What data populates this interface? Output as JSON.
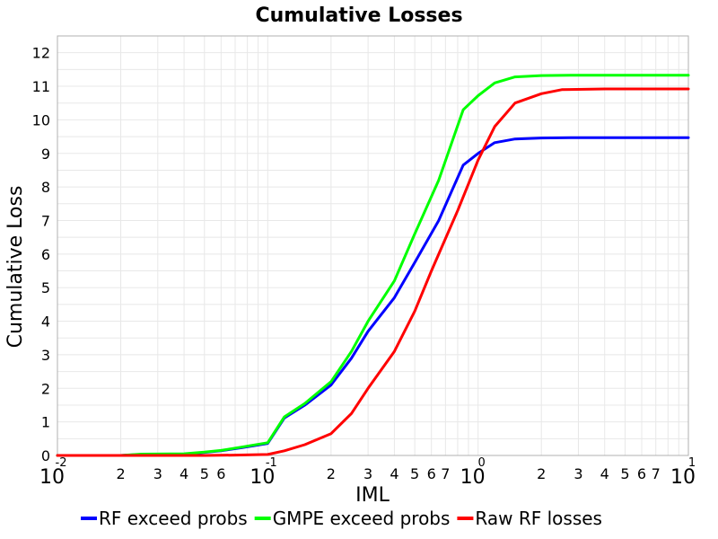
{
  "chart_data": {
    "type": "line",
    "title": "Cumulative Losses",
    "xlabel": "IML",
    "ylabel": "Cumulative Loss",
    "xscale": "log",
    "xlim": [
      0.01,
      10
    ],
    "ylim": [
      0,
      12.5
    ],
    "yticks": [
      "0",
      "1",
      "2",
      "3",
      "4",
      "5",
      "6",
      "7",
      "8",
      "9",
      "10",
      "11",
      "12"
    ],
    "xmajor_ticks": [
      {
        "value": 0.01,
        "base": "10",
        "exp": "-2"
      },
      {
        "value": 0.1,
        "base": "10",
        "exp": "-1"
      },
      {
        "value": 1,
        "base": "10",
        "exp": "0"
      },
      {
        "value": 10,
        "base": "10",
        "exp": "1"
      }
    ],
    "xminor_labels": [
      {
        "value": 0.02,
        "label": "2"
      },
      {
        "value": 0.03,
        "label": "3"
      },
      {
        "value": 0.04,
        "label": "4"
      },
      {
        "value": 0.05,
        "label": "5"
      },
      {
        "value": 0.06,
        "label": "6"
      },
      {
        "value": 0.2,
        "label": "2"
      },
      {
        "value": 0.3,
        "label": "3"
      },
      {
        "value": 0.4,
        "label": "4"
      },
      {
        "value": 0.5,
        "label": "5"
      },
      {
        "value": 0.6,
        "label": "6"
      },
      {
        "value": 0.7,
        "label": "7"
      },
      {
        "value": 2,
        "label": "2"
      },
      {
        "value": 3,
        "label": "3"
      },
      {
        "value": 4,
        "label": "4"
      },
      {
        "value": 5,
        "label": "5"
      },
      {
        "value": 6,
        "label": "6"
      },
      {
        "value": 7,
        "label": "7"
      }
    ],
    "grid": true,
    "legend_position": "bottom",
    "series": [
      {
        "name": "RF exceed probs",
        "color": "#0000ff",
        "points": [
          [
            0.01,
            0
          ],
          [
            0.02,
            0
          ],
          [
            0.025,
            0.03
          ],
          [
            0.04,
            0.04
          ],
          [
            0.05,
            0.09
          ],
          [
            0.06,
            0.14
          ],
          [
            0.075,
            0.23
          ],
          [
            0.1,
            0.36
          ],
          [
            0.12,
            1.12
          ],
          [
            0.15,
            1.5
          ],
          [
            0.2,
            2.1
          ],
          [
            0.25,
            2.9
          ],
          [
            0.3,
            3.7
          ],
          [
            0.4,
            4.7
          ],
          [
            0.5,
            5.75
          ],
          [
            0.65,
            7.0
          ],
          [
            0.85,
            8.65
          ],
          [
            1.0,
            9.0
          ],
          [
            1.2,
            9.32
          ],
          [
            1.5,
            9.43
          ],
          [
            2.0,
            9.46
          ],
          [
            3.0,
            9.47
          ],
          [
            10,
            9.47
          ]
        ]
      },
      {
        "name": "GMPE exceed probs",
        "color": "#00ff00",
        "points": [
          [
            0.01,
            0
          ],
          [
            0.02,
            0
          ],
          [
            0.025,
            0.04
          ],
          [
            0.04,
            0.05
          ],
          [
            0.05,
            0.1
          ],
          [
            0.06,
            0.15
          ],
          [
            0.075,
            0.25
          ],
          [
            0.1,
            0.38
          ],
          [
            0.12,
            1.15
          ],
          [
            0.15,
            1.55
          ],
          [
            0.2,
            2.2
          ],
          [
            0.25,
            3.1
          ],
          [
            0.3,
            4.0
          ],
          [
            0.4,
            5.2
          ],
          [
            0.5,
            6.6
          ],
          [
            0.65,
            8.2
          ],
          [
            0.85,
            10.3
          ],
          [
            1.0,
            10.72
          ],
          [
            1.2,
            11.1
          ],
          [
            1.5,
            11.28
          ],
          [
            2.0,
            11.32
          ],
          [
            3.0,
            11.33
          ],
          [
            10,
            11.33
          ]
        ]
      },
      {
        "name": "Raw RF losses",
        "color": "#ff0000",
        "points": [
          [
            0.01,
            0
          ],
          [
            0.05,
            0
          ],
          [
            0.07,
            0.01
          ],
          [
            0.1,
            0.03
          ],
          [
            0.12,
            0.14
          ],
          [
            0.15,
            0.32
          ],
          [
            0.2,
            0.65
          ],
          [
            0.25,
            1.25
          ],
          [
            0.3,
            2.0
          ],
          [
            0.4,
            3.1
          ],
          [
            0.5,
            4.3
          ],
          [
            0.6,
            5.5
          ],
          [
            0.8,
            7.3
          ],
          [
            1.0,
            8.8
          ],
          [
            1.2,
            9.8
          ],
          [
            1.5,
            10.5
          ],
          [
            2.0,
            10.78
          ],
          [
            2.5,
            10.9
          ],
          [
            4.0,
            10.92
          ],
          [
            10,
            10.92
          ]
        ]
      }
    ]
  }
}
